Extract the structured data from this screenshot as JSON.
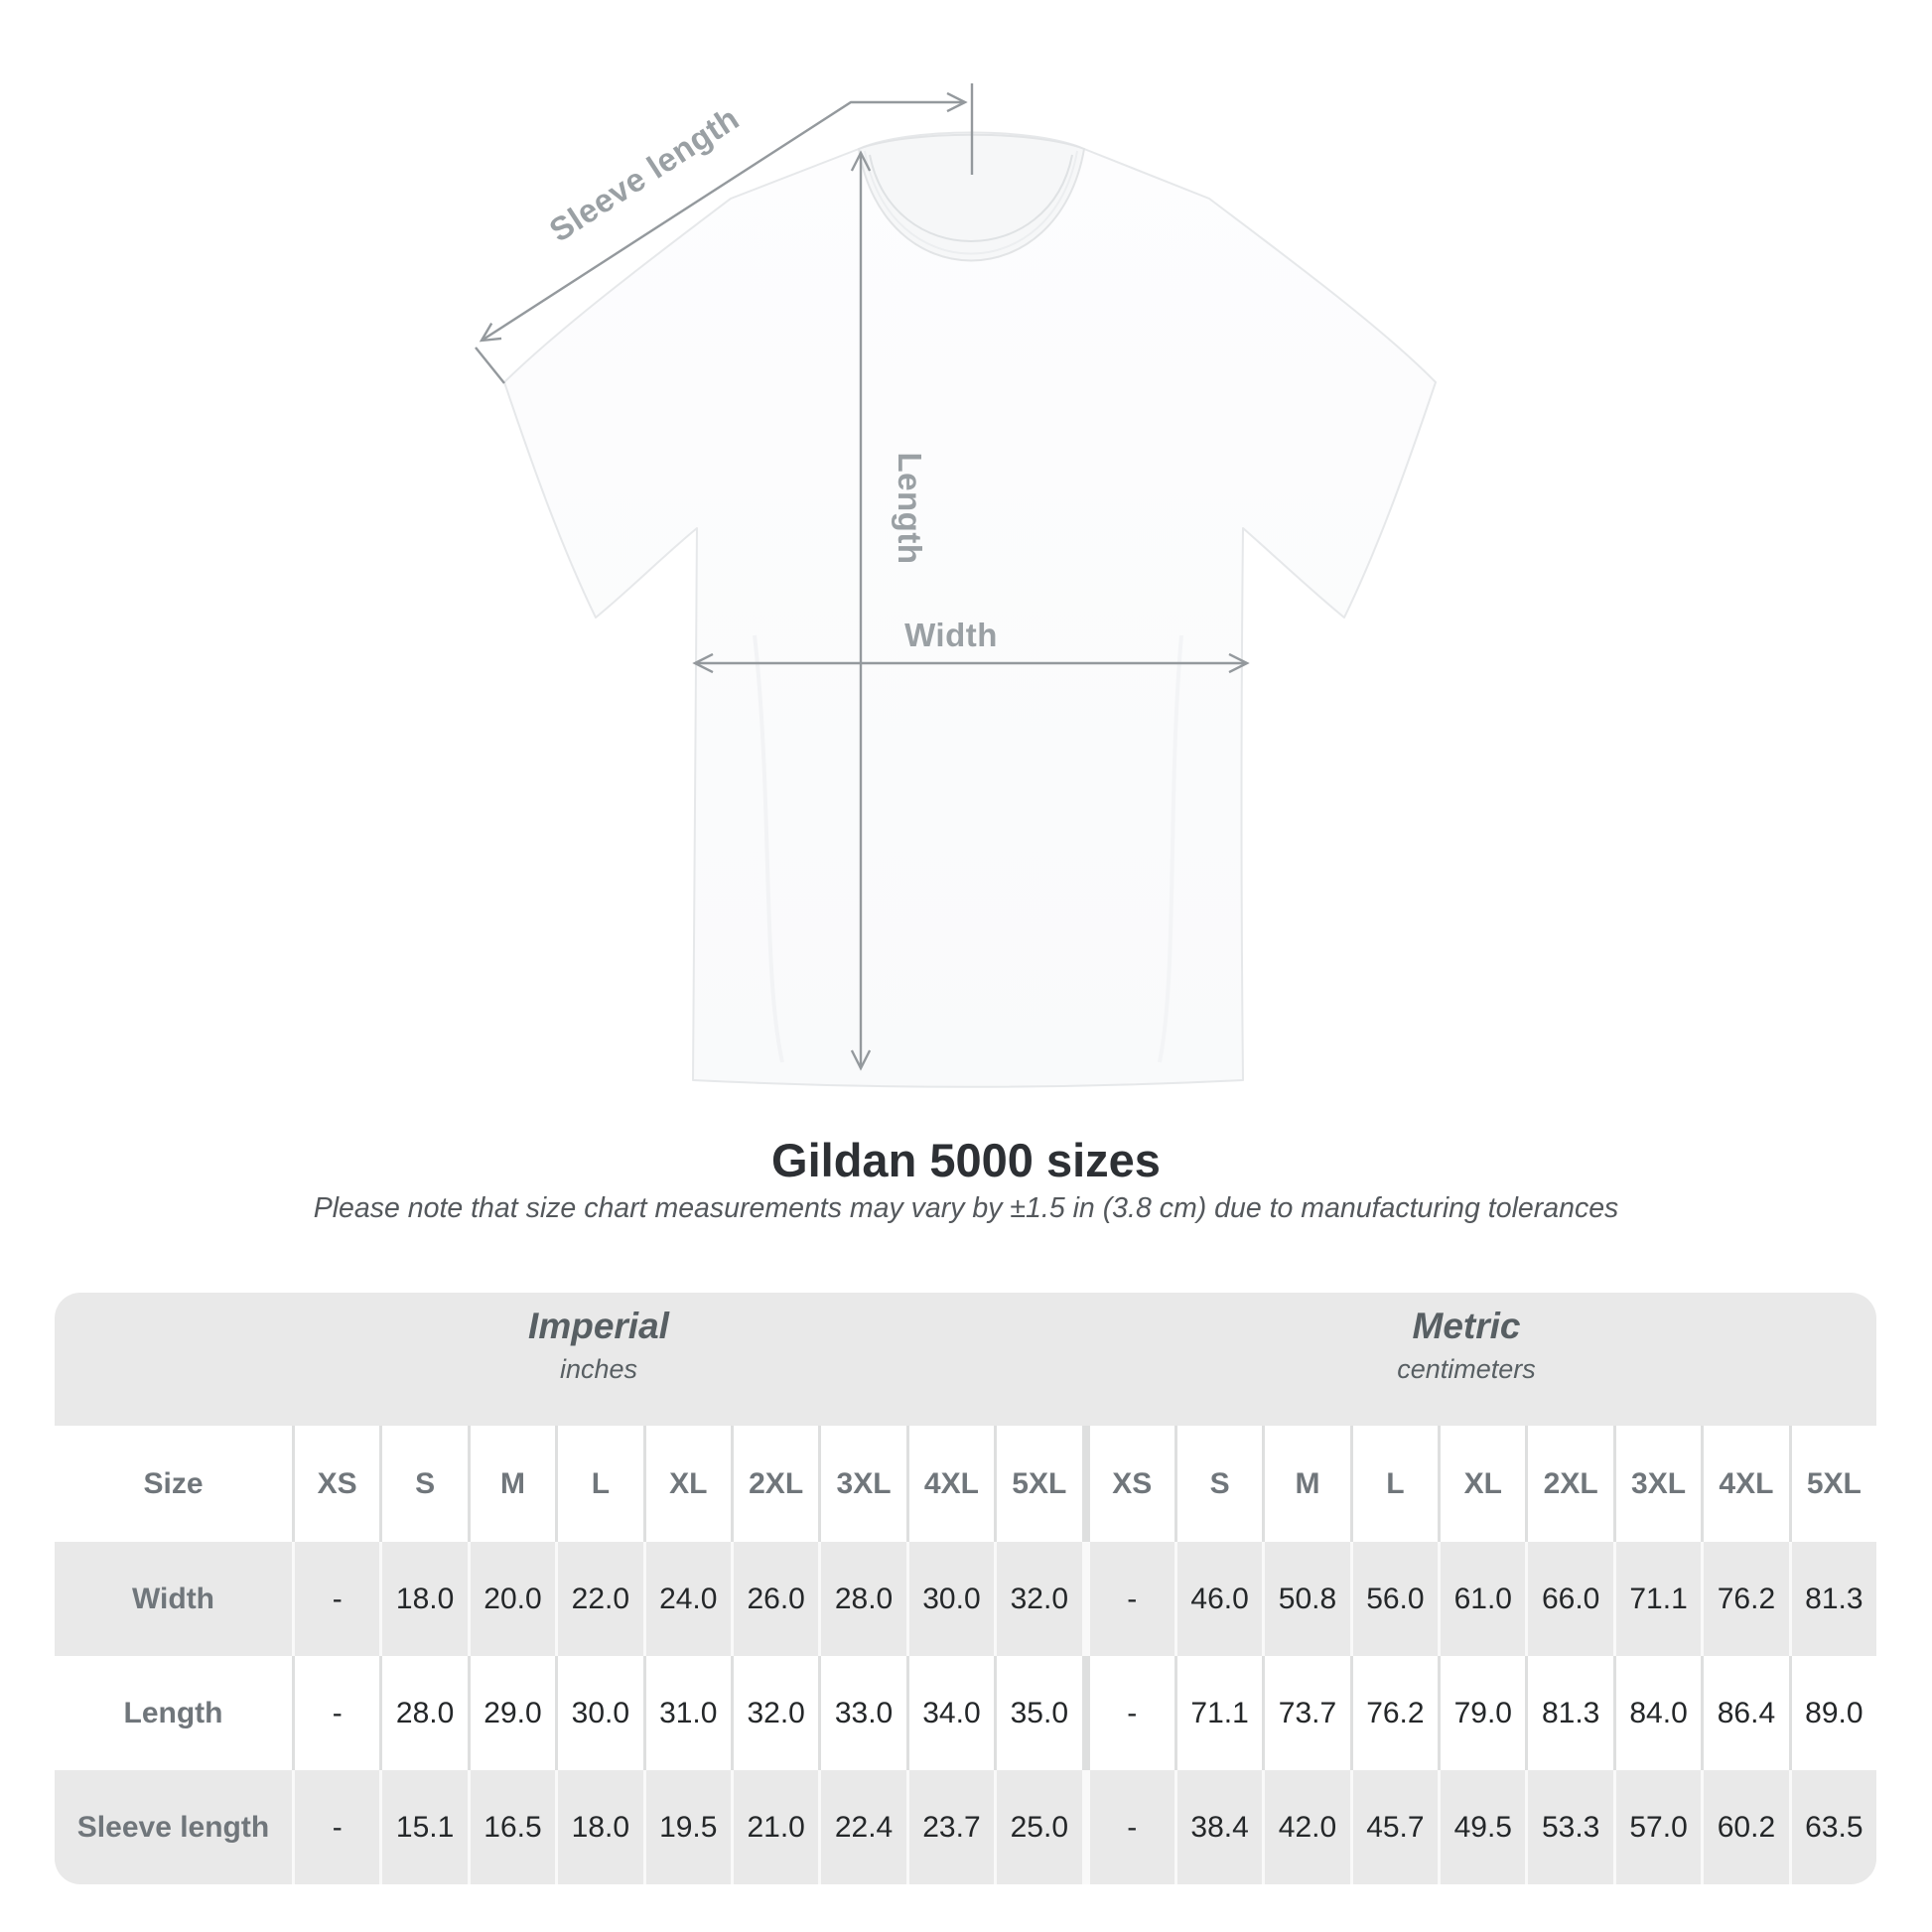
{
  "diagram": {
    "sleeve_label": "Sleeve length",
    "length_label": "Length",
    "width_label": "Width"
  },
  "title": "Gildan 5000 sizes",
  "note": "Please note that size chart measurements may vary by ±1.5 in (3.8 cm) due to manufacturing tolerances",
  "table": {
    "size_header": "Size",
    "sections": [
      {
        "label": "Imperial",
        "sub": "inches"
      },
      {
        "label": "Metric",
        "sub": "centimeters"
      }
    ],
    "sizes": [
      "XS",
      "S",
      "M",
      "L",
      "XL",
      "2XL",
      "3XL",
      "4XL",
      "5XL"
    ],
    "rows": [
      {
        "label": "Width",
        "imperial": [
          "-",
          "18.0",
          "20.0",
          "22.0",
          "24.0",
          "26.0",
          "28.0",
          "30.0",
          "32.0"
        ],
        "metric": [
          "-",
          "46.0",
          "50.8",
          "56.0",
          "61.0",
          "66.0",
          "71.1",
          "76.2",
          "81.3"
        ]
      },
      {
        "label": "Length",
        "imperial": [
          "-",
          "28.0",
          "29.0",
          "30.0",
          "31.0",
          "32.0",
          "33.0",
          "34.0",
          "35.0"
        ],
        "metric": [
          "-",
          "71.1",
          "73.7",
          "76.2",
          "79.0",
          "81.3",
          "84.0",
          "86.4",
          "89.0"
        ]
      },
      {
        "label": "Sleeve length",
        "imperial": [
          "-",
          "15.1",
          "16.5",
          "18.0",
          "19.5",
          "21.0",
          "22.4",
          "23.7",
          "25.0"
        ],
        "metric": [
          "-",
          "38.4",
          "42.0",
          "45.7",
          "49.5",
          "53.3",
          "57.0",
          "60.2",
          "63.5"
        ]
      }
    ]
  },
  "colors": {
    "table_gray": "#e9e9e9",
    "measurement_gray": "#94999d",
    "value_text": "#242729",
    "label_text": "#70767b"
  }
}
